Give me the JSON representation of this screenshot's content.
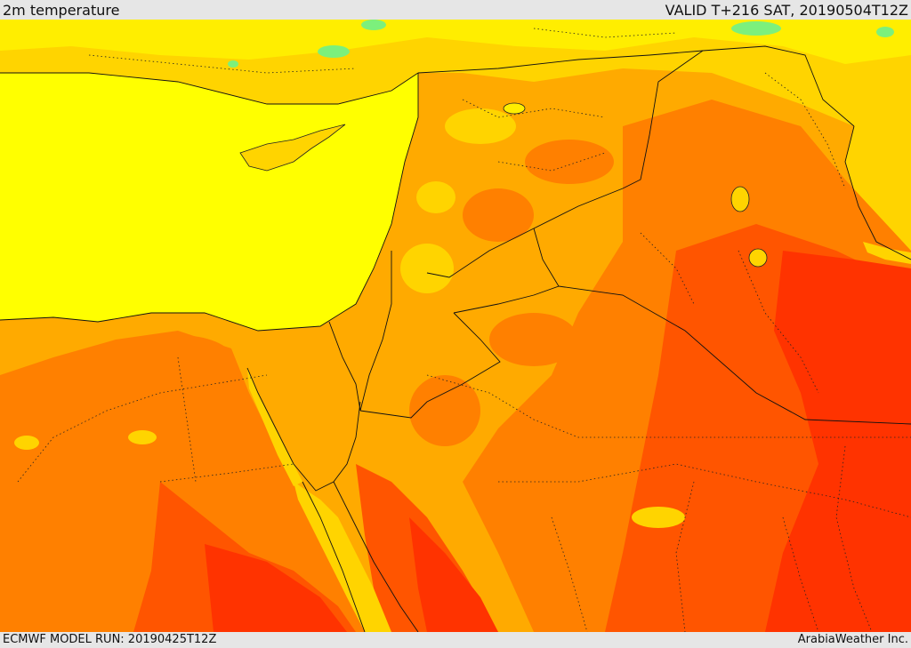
{
  "header": {
    "variable": "2m temperature",
    "valid": "VALID T+216 SAT, 20190504T12Z"
  },
  "footer": {
    "model_run": "ECMWF MODEL RUN: 20190425T12Z",
    "credit": "ArabiaWeather Inc."
  },
  "palette": {
    "sea": "#ffff00",
    "cool_green": "#7cf07c",
    "light_yellow": "#ffee00",
    "gold": "#ffd400",
    "amber": "#ffaa00",
    "orange": "#ff8000",
    "red_orange": "#ff5500",
    "red": "#ff3300"
  }
}
